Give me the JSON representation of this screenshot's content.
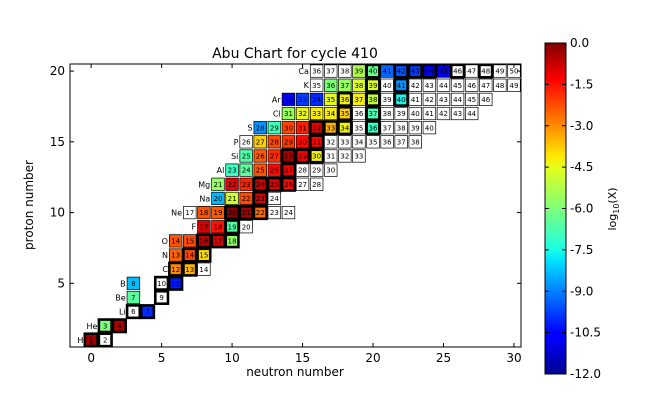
{
  "chart_data": {
    "type": "heatmap",
    "title": "Abu Chart for cycle 410",
    "xlabel": "neutron number",
    "ylabel": "proton number",
    "xlim": [
      -1.5,
      30.5
    ],
    "ylim": [
      0.5,
      20.5
    ],
    "xticks": [
      0,
      5,
      10,
      15,
      20,
      25,
      30
    ],
    "yticks": [
      5,
      10,
      15,
      20
    ],
    "colorbar": {
      "label_base": "log",
      "label_sub": "10",
      "label_arg": "(X)",
      "min": -12.0,
      "max": 0.0,
      "ticks": [
        0.0,
        -1.5,
        -3.0,
        -4.5,
        -6.0,
        -7.5,
        -9.0,
        -10.5,
        -12.0
      ],
      "tick_labels": [
        "0.0",
        "-1.5",
        "-3.0",
        "-4.5",
        "-6.0",
        "-7.5",
        "-9.0",
        "-10.5",
        "-12.0"
      ]
    },
    "elements": [
      {
        "name": "H",
        "z": 1
      },
      {
        "name": "He",
        "z": 2
      },
      {
        "name": "Li",
        "z": 3
      },
      {
        "name": "Be",
        "z": 4
      },
      {
        "name": "B",
        "z": 5
      },
      {
        "name": "C",
        "z": 6
      },
      {
        "name": "N",
        "z": 7
      },
      {
        "name": "O",
        "z": 8
      },
      {
        "name": "F",
        "z": 9
      },
      {
        "name": "Ne",
        "z": 10
      },
      {
        "name": "Na",
        "z": 11
      },
      {
        "name": "Mg",
        "z": 12
      },
      {
        "name": "Al",
        "z": 13
      },
      {
        "name": "Si",
        "z": 14
      },
      {
        "name": "P",
        "z": 15
      },
      {
        "name": "S",
        "z": 16
      },
      {
        "name": "Cl",
        "z": 17
      },
      {
        "name": "Ar",
        "z": 18
      },
      {
        "name": "K",
        "z": 19
      },
      {
        "name": "Ca",
        "z": 20
      }
    ],
    "isotopes": [
      {
        "z": 1,
        "a": 1,
        "v": -0.3,
        "s": true
      },
      {
        "z": 1,
        "a": 2,
        "v": null,
        "s": true
      },
      {
        "z": 2,
        "a": 3,
        "v": -6.0,
        "s": true
      },
      {
        "z": 2,
        "a": 4,
        "v": -0.5,
        "s": true
      },
      {
        "z": 3,
        "a": 6,
        "v": null,
        "s": true
      },
      {
        "z": 3,
        "a": 7,
        "v": -10.0,
        "s": true
      },
      {
        "z": 4,
        "a": 7,
        "v": -6.5,
        "s": false
      },
      {
        "z": 4,
        "a": 9,
        "v": null,
        "s": true
      },
      {
        "z": 5,
        "a": 8,
        "v": -8.3,
        "s": false
      },
      {
        "z": 5,
        "a": 10,
        "v": null,
        "s": true
      },
      {
        "z": 5,
        "a": 11,
        "v": -10.2,
        "s": true
      },
      {
        "z": 6,
        "a": 12,
        "v": -3.0,
        "s": true
      },
      {
        "z": 6,
        "a": 13,
        "v": -3.5,
        "s": true
      },
      {
        "z": 6,
        "a": 14,
        "v": null,
        "s": false
      },
      {
        "z": 7,
        "a": 13,
        "v": -2.5,
        "s": false
      },
      {
        "z": 7,
        "a": 14,
        "v": -2.2,
        "s": true
      },
      {
        "z": 7,
        "a": 15,
        "v": -4.0,
        "s": true
      },
      {
        "z": 8,
        "a": 14,
        "v": -2.3,
        "s": false
      },
      {
        "z": 8,
        "a": 15,
        "v": -2.2,
        "s": false
      },
      {
        "z": 8,
        "a": 16,
        "v": -0.6,
        "s": true
      },
      {
        "z": 8,
        "a": 17,
        "v": -0.9,
        "s": true
      },
      {
        "z": 8,
        "a": 18,
        "v": -5.7,
        "s": true
      },
      {
        "z": 9,
        "a": 17,
        "v": -0.9,
        "s": false
      },
      {
        "z": 9,
        "a": 18,
        "v": -1.5,
        "s": false
      },
      {
        "z": 9,
        "a": 19,
        "v": -6.6,
        "s": true
      },
      {
        "z": 9,
        "a": 20,
        "v": null,
        "s": false
      },
      {
        "z": 10,
        "a": 17,
        "v": null,
        "s": false
      },
      {
        "z": 10,
        "a": 18,
        "v": -2.3,
        "s": false
      },
      {
        "z": 10,
        "a": 19,
        "v": -2.4,
        "s": false
      },
      {
        "z": 10,
        "a": 20,
        "v": -0.1,
        "s": true
      },
      {
        "z": 10,
        "a": 21,
        "v": -0.4,
        "s": true
      },
      {
        "z": 10,
        "a": 22,
        "v": -2.6,
        "s": true
      },
      {
        "z": 10,
        "a": 23,
        "v": null,
        "s": false
      },
      {
        "z": 10,
        "a": 24,
        "v": null,
        "s": false
      },
      {
        "z": 11,
        "a": 20,
        "v": -8.4,
        "s": false
      },
      {
        "z": 11,
        "a": 21,
        "v": -4.8,
        "s": false
      },
      {
        "z": 11,
        "a": 22,
        "v": -2.2,
        "s": false
      },
      {
        "z": 11,
        "a": 23,
        "v": -0.9,
        "s": true
      },
      {
        "z": 11,
        "a": 24,
        "v": null,
        "s": false
      },
      {
        "z": 12,
        "a": 21,
        "v": -5.7,
        "s": false
      },
      {
        "z": 12,
        "a": 22,
        "v": -1.1,
        "s": false
      },
      {
        "z": 12,
        "a": 23,
        "v": -1.7,
        "s": false
      },
      {
        "z": 12,
        "a": 24,
        "v": -0.8,
        "s": true
      },
      {
        "z": 12,
        "a": 25,
        "v": -1.0,
        "s": true
      },
      {
        "z": 12,
        "a": 26,
        "v": -1.4,
        "s": true
      },
      {
        "z": 12,
        "a": 27,
        "v": null,
        "s": false
      },
      {
        "z": 12,
        "a": 28,
        "v": null,
        "s": false
      },
      {
        "z": 13,
        "a": 23,
        "v": -7.0,
        "s": false
      },
      {
        "z": 13,
        "a": 24,
        "v": -6.5,
        "s": false
      },
      {
        "z": 13,
        "a": 25,
        "v": -2.3,
        "s": false
      },
      {
        "z": 13,
        "a": 26,
        "v": -1.4,
        "s": false
      },
      {
        "z": 13,
        "a": 27,
        "v": -1.2,
        "s": true
      },
      {
        "z": 13,
        "a": 28,
        "v": null,
        "s": false
      },
      {
        "z": 13,
        "a": 29,
        "v": null,
        "s": false
      },
      {
        "z": 13,
        "a": 30,
        "v": null,
        "s": false
      },
      {
        "z": 14,
        "a": 25,
        "v": -6.7,
        "s": false
      },
      {
        "z": 14,
        "a": 26,
        "v": -2.4,
        "s": false
      },
      {
        "z": 14,
        "a": 27,
        "v": -1.8,
        "s": false
      },
      {
        "z": 14,
        "a": 28,
        "v": -0.5,
        "s": true
      },
      {
        "z": 14,
        "a": 29,
        "v": -1.3,
        "s": true
      },
      {
        "z": 14,
        "a": 30,
        "v": -4.3,
        "s": true
      },
      {
        "z": 14,
        "a": 31,
        "v": null,
        "s": false
      },
      {
        "z": 14,
        "a": 32,
        "v": null,
        "s": false
      },
      {
        "z": 14,
        "a": 33,
        "v": null,
        "s": false
      },
      {
        "z": 15,
        "a": 26,
        "v": null,
        "s": false
      },
      {
        "z": 15,
        "a": 27,
        "v": -3.8,
        "s": false
      },
      {
        "z": 15,
        "a": 28,
        "v": -2.2,
        "s": false
      },
      {
        "z": 15,
        "a": 29,
        "v": -2.0,
        "s": false
      },
      {
        "z": 15,
        "a": 30,
        "v": -1.4,
        "s": false
      },
      {
        "z": 15,
        "a": 31,
        "v": -1.4,
        "s": true
      },
      {
        "z": 15,
        "a": 32,
        "v": null,
        "s": false
      },
      {
        "z": 15,
        "a": 33,
        "v": null,
        "s": false
      },
      {
        "z": 15,
        "a": 34,
        "v": null,
        "s": false
      },
      {
        "z": 15,
        "a": 35,
        "v": null,
        "s": false
      },
      {
        "z": 15,
        "a": 36,
        "v": null,
        "s": false
      },
      {
        "z": 15,
        "a": 37,
        "v": null,
        "s": false
      },
      {
        "z": 15,
        "a": 38,
        "v": null,
        "s": false
      },
      {
        "z": 16,
        "a": 28,
        "v": -8.8,
        "s": false
      },
      {
        "z": 16,
        "a": 29,
        "v": -6.9,
        "s": false
      },
      {
        "z": 16,
        "a": 30,
        "v": -2.2,
        "s": false
      },
      {
        "z": 16,
        "a": 31,
        "v": -1.7,
        "s": false
      },
      {
        "z": 16,
        "a": 32,
        "v": -1.1,
        "s": true
      },
      {
        "z": 16,
        "a": 33,
        "v": -3.5,
        "s": true
      },
      {
        "z": 16,
        "a": 34,
        "v": -4.3,
        "s": true
      },
      {
        "z": 16,
        "a": 35,
        "v": null,
        "s": false
      },
      {
        "z": 16,
        "a": 36,
        "v": -7.0,
        "s": true
      },
      {
        "z": 16,
        "a": 37,
        "v": null,
        "s": false
      },
      {
        "z": 16,
        "a": 38,
        "v": null,
        "s": false
      },
      {
        "z": 16,
        "a": 39,
        "v": null,
        "s": false
      },
      {
        "z": 16,
        "a": 40,
        "v": null,
        "s": false
      },
      {
        "z": 17,
        "a": 31,
        "v": -5.6,
        "s": false
      },
      {
        "z": 17,
        "a": 32,
        "v": -4.4,
        "s": false
      },
      {
        "z": 17,
        "a": 33,
        "v": -4.2,
        "s": false
      },
      {
        "z": 17,
        "a": 34,
        "v": -4.2,
        "s": false
      },
      {
        "z": 17,
        "a": 35,
        "v": -3.8,
        "s": true
      },
      {
        "z": 17,
        "a": 36,
        "v": null,
        "s": false
      },
      {
        "z": 17,
        "a": 37,
        "v": -6.8,
        "s": true
      },
      {
        "z": 17,
        "a": 38,
        "v": null,
        "s": false
      },
      {
        "z": 17,
        "a": 39,
        "v": null,
        "s": false
      },
      {
        "z": 17,
        "a": 40,
        "v": null,
        "s": false
      },
      {
        "z": 17,
        "a": 41,
        "v": null,
        "s": false
      },
      {
        "z": 17,
        "a": 42,
        "v": null,
        "s": false
      },
      {
        "z": 17,
        "a": 43,
        "v": null,
        "s": false
      },
      {
        "z": 17,
        "a": 44,
        "v": null,
        "s": false
      },
      {
        "z": 18,
        "a": 32,
        "v": -10.9,
        "s": false
      },
      {
        "z": 18,
        "a": 33,
        "v": -9.8,
        "s": false
      },
      {
        "z": 18,
        "a": 34,
        "v": -10.0,
        "s": false
      },
      {
        "z": 18,
        "a": 35,
        "v": -4.5,
        "s": false
      },
      {
        "z": 18,
        "a": 36,
        "v": -4.3,
        "s": true
      },
      {
        "z": 18,
        "a": 37,
        "v": -4.2,
        "s": false
      },
      {
        "z": 18,
        "a": 38,
        "v": -5.0,
        "s": true
      },
      {
        "z": 18,
        "a": 39,
        "v": null,
        "s": false
      },
      {
        "z": 18,
        "a": 40,
        "v": -7.6,
        "s": true
      },
      {
        "z": 18,
        "a": 41,
        "v": null,
        "s": false
      },
      {
        "z": 18,
        "a": 42,
        "v": null,
        "s": false
      },
      {
        "z": 18,
        "a": 43,
        "v": null,
        "s": false
      },
      {
        "z": 18,
        "a": 44,
        "v": null,
        "s": false
      },
      {
        "z": 18,
        "a": 45,
        "v": null,
        "s": false
      },
      {
        "z": 18,
        "a": 46,
        "v": null,
        "s": false
      },
      {
        "z": 19,
        "a": 35,
        "v": null,
        "s": false
      },
      {
        "z": 19,
        "a": 36,
        "v": -6.0,
        "s": false
      },
      {
        "z": 19,
        "a": 37,
        "v": -5.6,
        "s": false
      },
      {
        "z": 19,
        "a": 38,
        "v": -4.6,
        "s": false
      },
      {
        "z": 19,
        "a": 39,
        "v": -4.7,
        "s": true
      },
      {
        "z": 19,
        "a": 40,
        "v": null,
        "s": false
      },
      {
        "z": 19,
        "a": 41,
        "v": -8.8,
        "s": true
      },
      {
        "z": 19,
        "a": 42,
        "v": null,
        "s": false
      },
      {
        "z": 19,
        "a": 43,
        "v": null,
        "s": false
      },
      {
        "z": 19,
        "a": 44,
        "v": null,
        "s": false
      },
      {
        "z": 19,
        "a": 45,
        "v": null,
        "s": false
      },
      {
        "z": 19,
        "a": 46,
        "v": null,
        "s": false
      },
      {
        "z": 19,
        "a": 47,
        "v": null,
        "s": false
      },
      {
        "z": 19,
        "a": 48,
        "v": null,
        "s": false
      },
      {
        "z": 19,
        "a": 49,
        "v": null,
        "s": false
      },
      {
        "z": 20,
        "a": 36,
        "v": null,
        "s": false
      },
      {
        "z": 20,
        "a": 37,
        "v": null,
        "s": false
      },
      {
        "z": 20,
        "a": 38,
        "v": null,
        "s": false
      },
      {
        "z": 20,
        "a": 39,
        "v": -5.3,
        "s": false
      },
      {
        "z": 20,
        "a": 40,
        "v": -6.3,
        "s": true
      },
      {
        "z": 20,
        "a": 41,
        "v": -9.3,
        "s": false
      },
      {
        "z": 20,
        "a": 42,
        "v": -9.5,
        "s": true
      },
      {
        "z": 20,
        "a": 43,
        "v": -9.8,
        "s": true
      },
      {
        "z": 20,
        "a": 44,
        "v": -10.5,
        "s": true
      },
      {
        "z": 20,
        "a": 45,
        "v": -11.0,
        "s": false
      },
      {
        "z": 20,
        "a": 46,
        "v": null,
        "s": true
      },
      {
        "z": 20,
        "a": 47,
        "v": null,
        "s": false
      },
      {
        "z": 20,
        "a": 48,
        "v": null,
        "s": true
      },
      {
        "z": 20,
        "a": 49,
        "v": null,
        "s": false
      },
      {
        "z": 20,
        "a": 50,
        "v": null,
        "s": false
      }
    ]
  }
}
